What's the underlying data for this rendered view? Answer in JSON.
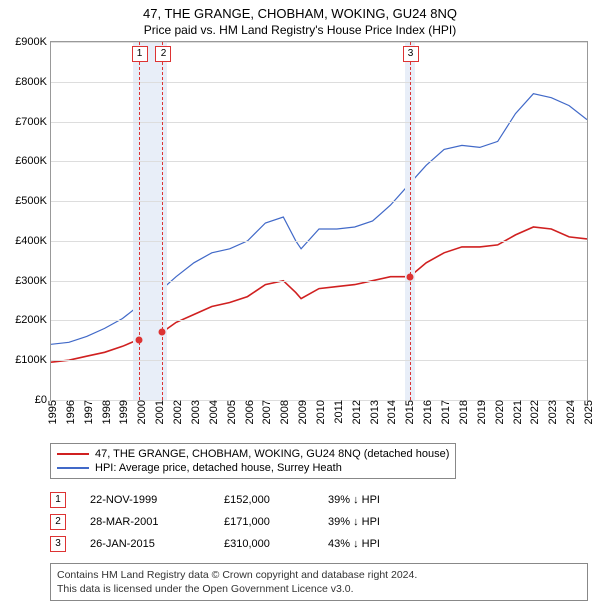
{
  "title": "47, THE GRANGE, CHOBHAM, WOKING, GU24 8NQ",
  "subtitle": "Price paid vs. HM Land Registry's House Price Index (HPI)",
  "chart": {
    "type": "line",
    "y": {
      "min": 0,
      "max": 900,
      "step": 100,
      "prefix": "£",
      "suffix": "K"
    },
    "x": {
      "min": 1995,
      "max": 2025,
      "step": 1
    },
    "background_color": "#ffffff",
    "grid_color": "#dddddd",
    "band_color": "#e8eef8",
    "series": [
      {
        "name": "property",
        "label": "47, THE GRANGE, CHOBHAM, WOKING, GU24 8NQ (detached house)",
        "color": "#d02020",
        "width": 1.6,
        "data": [
          [
            1995,
            95
          ],
          [
            1996,
            100
          ],
          [
            1997,
            110
          ],
          [
            1998,
            120
          ],
          [
            1999,
            135
          ],
          [
            1999.9,
            152
          ],
          [
            2000.5,
            158
          ],
          [
            2001.24,
            171
          ],
          [
            2002,
            195
          ],
          [
            2003,
            215
          ],
          [
            2004,
            235
          ],
          [
            2005,
            245
          ],
          [
            2006,
            260
          ],
          [
            2007,
            290
          ],
          [
            2008,
            300
          ],
          [
            2008.7,
            270
          ],
          [
            2009,
            255
          ],
          [
            2010,
            280
          ],
          [
            2011,
            285
          ],
          [
            2012,
            290
          ],
          [
            2013,
            300
          ],
          [
            2014,
            310
          ],
          [
            2015.07,
            310
          ],
          [
            2016,
            345
          ],
          [
            2017,
            370
          ],
          [
            2018,
            385
          ],
          [
            2019,
            385
          ],
          [
            2020,
            390
          ],
          [
            2021,
            415
          ],
          [
            2022,
            435
          ],
          [
            2023,
            430
          ],
          [
            2024,
            410
          ],
          [
            2025,
            405
          ]
        ]
      },
      {
        "name": "hpi",
        "label": "HPI: Average price, detached house, Surrey Heath",
        "color": "#4169c8",
        "width": 1.2,
        "data": [
          [
            1995,
            140
          ],
          [
            1996,
            145
          ],
          [
            1997,
            160
          ],
          [
            1998,
            180
          ],
          [
            1999,
            205
          ],
          [
            2000,
            240
          ],
          [
            2001,
            270
          ],
          [
            2002,
            310
          ],
          [
            2003,
            345
          ],
          [
            2004,
            370
          ],
          [
            2005,
            380
          ],
          [
            2006,
            400
          ],
          [
            2007,
            445
          ],
          [
            2008,
            460
          ],
          [
            2008.7,
            400
          ],
          [
            2009,
            380
          ],
          [
            2010,
            430
          ],
          [
            2011,
            430
          ],
          [
            2012,
            435
          ],
          [
            2013,
            450
          ],
          [
            2014,
            490
          ],
          [
            2015,
            540
          ],
          [
            2016,
            590
          ],
          [
            2017,
            630
          ],
          [
            2018,
            640
          ],
          [
            2019,
            635
          ],
          [
            2020,
            650
          ],
          [
            2021,
            720
          ],
          [
            2022,
            770
          ],
          [
            2023,
            760
          ],
          [
            2024,
            740
          ],
          [
            2025,
            705
          ]
        ]
      }
    ],
    "bands": [
      {
        "from": 1999.6,
        "to": 2001.5
      },
      {
        "from": 2014.8,
        "to": 2015.4
      }
    ],
    "vlines": [
      1999.9,
      2001.24,
      2015.07
    ],
    "markers": [
      {
        "n": "1",
        "x": 1999.9,
        "price": 152
      },
      {
        "n": "2",
        "x": 2001.24,
        "price": 171
      },
      {
        "n": "3",
        "x": 2015.07,
        "price": 310
      }
    ]
  },
  "events": [
    {
      "n": "1",
      "date": "22-NOV-1999",
      "price": "£152,000",
      "diff": "39% ↓ HPI"
    },
    {
      "n": "2",
      "date": "28-MAR-2001",
      "price": "£171,000",
      "diff": "39% ↓ HPI"
    },
    {
      "n": "3",
      "date": "26-JAN-2015",
      "price": "£310,000",
      "diff": "43% ↓ HPI"
    }
  ],
  "footer": {
    "line1": "Contains HM Land Registry data © Crown copyright and database right 2024.",
    "line2": "This data is licensed under the Open Government Licence v3.0."
  }
}
